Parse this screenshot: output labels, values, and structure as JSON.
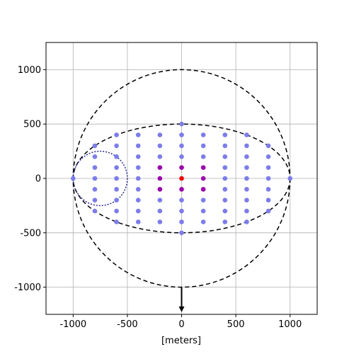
{
  "chart_data": {
    "type": "scatter",
    "xlabel": "[meters]",
    "xlim": [
      -1250,
      1250
    ],
    "ylim": [
      -1250,
      1250
    ],
    "xticks": [
      -1000,
      -500,
      0,
      500,
      1000
    ],
    "yticks": [
      -1000,
      -500,
      0,
      500,
      1000
    ],
    "grid": true,
    "series": [
      {
        "color": "#7b7bf3",
        "x": [
          -1000,
          -800,
          -800,
          -800,
          -800,
          -800,
          -800,
          -800,
          -600,
          -600,
          -600,
          -600,
          -600,
          -600,
          -600,
          -600,
          -600,
          -400,
          -400,
          -400,
          -400,
          -400,
          -400,
          -400,
          -400,
          -400,
          -200,
          -200,
          -200,
          -200,
          -200,
          -200,
          0,
          0,
          0,
          0,
          0,
          0,
          0,
          0,
          200,
          200,
          200,
          200,
          200,
          200,
          400,
          400,
          400,
          400,
          400,
          400,
          400,
          400,
          400,
          600,
          600,
          600,
          600,
          600,
          600,
          600,
          600,
          600,
          800,
          800,
          800,
          800,
          800,
          800,
          800,
          1000
        ],
        "values": [
          0,
          300,
          200,
          100,
          0,
          -100,
          -200,
          -300,
          400,
          300,
          200,
          100,
          0,
          -100,
          -200,
          -300,
          -400,
          400,
          300,
          200,
          100,
          0,
          -100,
          -200,
          -300,
          -400,
          400,
          300,
          200,
          -200,
          -300,
          -400,
          500,
          400,
          300,
          200,
          -200,
          -300,
          -400,
          -500,
          400,
          300,
          200,
          -200,
          -300,
          -400,
          400,
          300,
          200,
          100,
          0,
          -100,
          -200,
          -300,
          -400,
          400,
          300,
          200,
          100,
          0,
          -100,
          -200,
          -300,
          -400,
          300,
          200,
          100,
          0,
          -100,
          -200,
          -300,
          0
        ]
      },
      {
        "color": "#a000b4",
        "x": [
          -200,
          -200,
          -200,
          0,
          0,
          200,
          200,
          200
        ],
        "values": [
          100,
          0,
          -100,
          100,
          -100,
          100,
          0,
          -100
        ]
      },
      {
        "color": "#ff0000",
        "x": [
          0
        ],
        "values": [
          0
        ]
      }
    ],
    "ellipses": [
      {
        "center": [
          0,
          0
        ],
        "radii": [
          1000,
          1000
        ],
        "color": "#000000",
        "style": "dashed"
      },
      {
        "center": [
          0,
          0
        ],
        "radii": [
          1000,
          500
        ],
        "color": "#000000",
        "style": "dashed"
      },
      {
        "center": [
          -750,
          0
        ],
        "radii": [
          250,
          250
        ],
        "color": "#2a2ab0",
        "style": "dotted"
      }
    ],
    "arrow": {
      "from": [
        0,
        -1000
      ],
      "to": [
        0,
        -1230
      ],
      "color": "#000000"
    }
  }
}
